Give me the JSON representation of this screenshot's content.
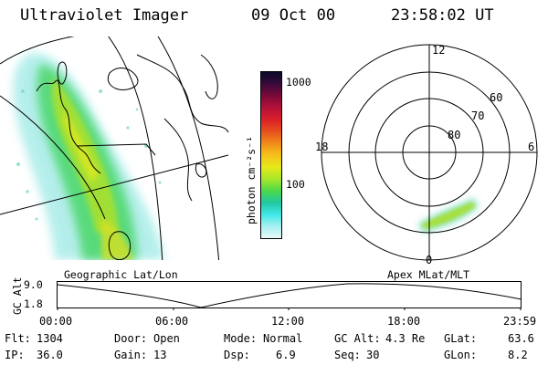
{
  "header": {
    "instrument": "Ultraviolet Imager",
    "date": "09 Oct 00",
    "time": "23:58:02 UT"
  },
  "colorbar": {
    "unit_label": "photon cm⁻²s⁻¹",
    "tick_1000": "1000",
    "tick_100": "100",
    "colors": [
      "#0b0b2a",
      "#3a0a3a",
      "#7a0a3a",
      "#b5103a",
      "#d9202a",
      "#e8501f",
      "#f08a1a",
      "#f5c21a",
      "#e8e81a",
      "#a8e82a",
      "#4fd84a",
      "#20c8a0",
      "#40e8e8",
      "#a8f0f0",
      "#e8f8f8"
    ]
  },
  "geo_panel": {
    "label": "Geographic Lat/Lon"
  },
  "polar_panel": {
    "label": "Apex MLat/MLT",
    "mlt_12": "12",
    "mlt_18": "18",
    "mlt_6": "6",
    "mlt_0": "0",
    "lat_60": "60",
    "lat_70": "70",
    "lat_80": "80"
  },
  "altitude_plot": {
    "ylabel": "GC Alt",
    "y_hi": "9.0",
    "y_lo": "1.8",
    "x_ticks": [
      "00:00",
      "06:00",
      "12:00",
      "18:00",
      "23:59"
    ]
  },
  "status": {
    "filter_label": "Flt:",
    "filter_value": "1304",
    "ip_label": "IP:",
    "ip_value": "36.0",
    "door_label": "Door:",
    "door_value": "Open",
    "gain_label": "Gain:",
    "gain_value": "13",
    "mode_label": "Mode:",
    "mode_value": "Normal",
    "dsp_label": "Dsp:",
    "dsp_value": "6.9",
    "gcalt_label": "GC Alt:",
    "gcalt_value": "4.3 Re",
    "seq_label": "Seq:",
    "seq_value": "30",
    "glat_label": "GLat:",
    "glat_value": "63.6",
    "glon_label": "GLon:",
    "glon_value": "8.2"
  }
}
